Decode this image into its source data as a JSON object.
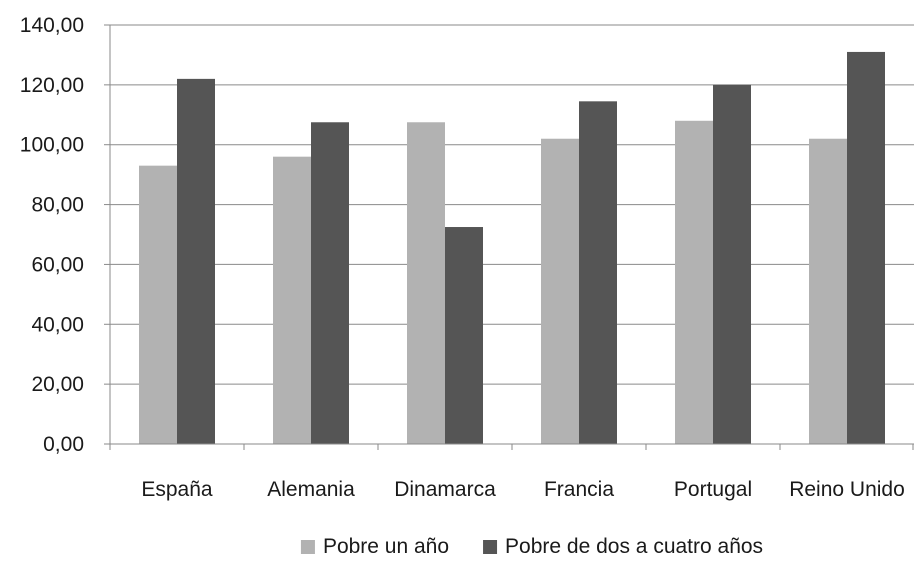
{
  "chart_data": {
    "type": "bar",
    "title": "",
    "xlabel": "",
    "ylabel": "",
    "categories": [
      "España",
      "Alemania",
      "Dinamarca",
      "Francia",
      "Portugal",
      "Reino Unido"
    ],
    "series": [
      {
        "name": "Pobre un año",
        "color": "#b2b2b2",
        "values": [
          93.0,
          96.0,
          107.5,
          102.0,
          108.0,
          102.0
        ]
      },
      {
        "name": "Pobre de dos a cuatro años",
        "color": "#555555",
        "values": [
          122.0,
          107.5,
          72.5,
          114.5,
          120.0,
          131.0
        ]
      }
    ],
    "ylim": [
      0,
      140
    ],
    "yticks": [
      "0,00",
      "20,00",
      "40,00",
      "60,00",
      "80,00",
      "100,00",
      "120,00",
      "140,00"
    ],
    "ytick_values": [
      0,
      20,
      40,
      60,
      80,
      100,
      120,
      140
    ],
    "grid": true,
    "legend": "bottom"
  }
}
